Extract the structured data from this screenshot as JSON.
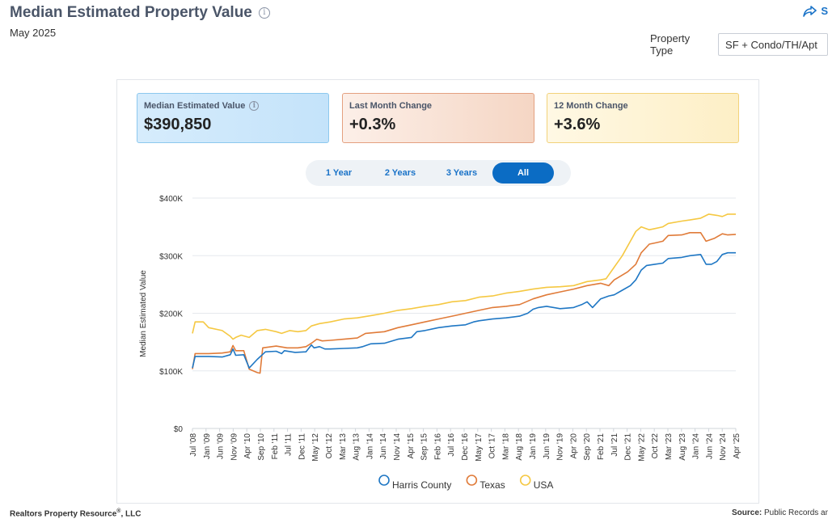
{
  "header": {
    "title": "Median Estimated Property Value",
    "subtitle": "May 2025",
    "share_label": "S"
  },
  "filter": {
    "label": "Property Type",
    "value": "SF + Condo/TH/Apt"
  },
  "cards": [
    {
      "label": "Median Estimated Value",
      "value": "$390,850",
      "has_info": true
    },
    {
      "label": "Last Month Change",
      "value": "+0.3%"
    },
    {
      "label": "12 Month Change",
      "value": "+3.6%"
    }
  ],
  "range_buttons": [
    {
      "label": "1 Year",
      "active": false
    },
    {
      "label": "2 Years",
      "active": false
    },
    {
      "label": "3 Years",
      "active": false
    },
    {
      "label": "All",
      "active": true
    }
  ],
  "footer": {
    "left": "Realtors Property Resource",
    "left_mark": "®",
    "left_suffix": ", LLC",
    "right_label": "Source:",
    "right_text": "Public Records an"
  },
  "chart_data": {
    "type": "line",
    "ylabel": "Median Estimated Value",
    "ylim": [
      0,
      400000
    ],
    "y_ticks": [
      {
        "value": 0,
        "label": "$0"
      },
      {
        "value": 100000,
        "label": "$100K"
      },
      {
        "value": 200000,
        "label": "$200K"
      },
      {
        "value": 300000,
        "label": "$300K"
      },
      {
        "value": 400000,
        "label": "$400K"
      }
    ],
    "x_range": [
      "2008-07",
      "2025-04"
    ],
    "x_tick_labels": [
      "Jul '08",
      "Jan '09",
      "Jun '09",
      "Nov '09",
      "Apr '10",
      "Sep '10",
      "Feb '11",
      "Jul '11",
      "Dec '11",
      "May '12",
      "Oct '12",
      "Mar '13",
      "Aug '13",
      "Jan '14",
      "Jun '14",
      "Nov '14",
      "Apr '15",
      "Sep '15",
      "Feb '16",
      "Jul '16",
      "Dec '16",
      "May '17",
      "Oct '17",
      "Mar '18",
      "Aug '18",
      "Jan '19",
      "Jun '19",
      "Nov '19",
      "Apr '20",
      "Sep '20",
      "Feb '21",
      "Jul '21",
      "Dec '21",
      "May '22",
      "Oct '22",
      "Mar '23",
      "Aug '23",
      "Jan '24",
      "Jun '24",
      "Nov '24",
      "Apr '25"
    ],
    "grid": true,
    "legend_position": "bottom",
    "series": [
      {
        "name": "Harris County",
        "color": "#1f77c4",
        "points": [
          [
            "2008-07",
            105000
          ],
          [
            "2008-08",
            125000
          ],
          [
            "2009-01",
            125000
          ],
          [
            "2009-06",
            124000
          ],
          [
            "2009-09",
            128000
          ],
          [
            "2009-10",
            138000
          ],
          [
            "2009-11",
            127000
          ],
          [
            "2010-02",
            128000
          ],
          [
            "2010-04",
            105000
          ],
          [
            "2010-07",
            120000
          ],
          [
            "2010-10",
            133000
          ],
          [
            "2011-02",
            134000
          ],
          [
            "2011-04",
            130000
          ],
          [
            "2011-05",
            135000
          ],
          [
            "2011-09",
            132000
          ],
          [
            "2012-01",
            133000
          ],
          [
            "2012-03",
            145000
          ],
          [
            "2012-04",
            140000
          ],
          [
            "2012-06",
            142000
          ],
          [
            "2012-08",
            138000
          ],
          [
            "2012-10",
            138000
          ],
          [
            "2013-03",
            139000
          ],
          [
            "2013-08",
            140000
          ],
          [
            "2013-10",
            142000
          ],
          [
            "2014-01",
            147000
          ],
          [
            "2014-06",
            148000
          ],
          [
            "2014-11",
            155000
          ],
          [
            "2015-04",
            158000
          ],
          [
            "2015-06",
            168000
          ],
          [
            "2015-09",
            170000
          ],
          [
            "2016-02",
            175000
          ],
          [
            "2016-07",
            178000
          ],
          [
            "2016-12",
            180000
          ],
          [
            "2017-03",
            185000
          ],
          [
            "2017-05",
            187000
          ],
          [
            "2017-10",
            190000
          ],
          [
            "2018-03",
            192000
          ],
          [
            "2018-08",
            195000
          ],
          [
            "2018-11",
            200000
          ],
          [
            "2019-01",
            207000
          ],
          [
            "2019-03",
            210000
          ],
          [
            "2019-06",
            212000
          ],
          [
            "2019-11",
            208000
          ],
          [
            "2020-04",
            210000
          ],
          [
            "2020-07",
            215000
          ],
          [
            "2020-09",
            220000
          ],
          [
            "2020-11",
            210000
          ],
          [
            "2021-02",
            225000
          ],
          [
            "2021-05",
            230000
          ],
          [
            "2021-07",
            232000
          ],
          [
            "2021-10",
            240000
          ],
          [
            "2022-01",
            248000
          ],
          [
            "2022-03",
            258000
          ],
          [
            "2022-05",
            275000
          ],
          [
            "2022-07",
            283000
          ],
          [
            "2022-10",
            285000
          ],
          [
            "2023-01",
            287000
          ],
          [
            "2023-03",
            295000
          ],
          [
            "2023-08",
            297000
          ],
          [
            "2023-11",
            300000
          ],
          [
            "2024-03",
            302000
          ],
          [
            "2024-05",
            285000
          ],
          [
            "2024-07",
            285000
          ],
          [
            "2024-09",
            290000
          ],
          [
            "2024-11",
            302000
          ],
          [
            "2025-01",
            305000
          ],
          [
            "2025-04",
            305000
          ]
        ]
      },
      {
        "name": "Texas",
        "color": "#e07b39",
        "points": [
          [
            "2008-07",
            103000
          ],
          [
            "2008-08",
            130000
          ],
          [
            "2009-01",
            130000
          ],
          [
            "2009-06",
            131000
          ],
          [
            "2009-09",
            133000
          ],
          [
            "2009-10",
            144000
          ],
          [
            "2009-11",
            135000
          ],
          [
            "2010-02",
            135000
          ],
          [
            "2010-04",
            103000
          ],
          [
            "2010-07",
            97000
          ],
          [
            "2010-08",
            96000
          ],
          [
            "2010-09",
            140000
          ],
          [
            "2011-02",
            143000
          ],
          [
            "2011-06",
            140000
          ],
          [
            "2011-10",
            140000
          ],
          [
            "2012-01",
            142000
          ],
          [
            "2012-03",
            148000
          ],
          [
            "2012-05",
            155000
          ],
          [
            "2012-07",
            152000
          ],
          [
            "2012-10",
            153000
          ],
          [
            "2013-03",
            155000
          ],
          [
            "2013-08",
            157000
          ],
          [
            "2013-11",
            165000
          ],
          [
            "2014-06",
            168000
          ],
          [
            "2014-11",
            175000
          ],
          [
            "2015-04",
            180000
          ],
          [
            "2015-09",
            185000
          ],
          [
            "2016-02",
            190000
          ],
          [
            "2016-07",
            195000
          ],
          [
            "2016-12",
            200000
          ],
          [
            "2017-05",
            205000
          ],
          [
            "2017-10",
            210000
          ],
          [
            "2018-03",
            212000
          ],
          [
            "2018-08",
            215000
          ],
          [
            "2019-01",
            225000
          ],
          [
            "2019-06",
            232000
          ],
          [
            "2019-11",
            237000
          ],
          [
            "2020-04",
            242000
          ],
          [
            "2020-09",
            248000
          ],
          [
            "2021-02",
            252000
          ],
          [
            "2021-05",
            248000
          ],
          [
            "2021-07",
            258000
          ],
          [
            "2021-12",
            272000
          ],
          [
            "2022-03",
            285000
          ],
          [
            "2022-05",
            305000
          ],
          [
            "2022-08",
            320000
          ],
          [
            "2022-10",
            322000
          ],
          [
            "2023-01",
            325000
          ],
          [
            "2023-03",
            335000
          ],
          [
            "2023-08",
            336000
          ],
          [
            "2023-11",
            340000
          ],
          [
            "2024-03",
            340000
          ],
          [
            "2024-05",
            325000
          ],
          [
            "2024-08",
            330000
          ],
          [
            "2024-11",
            338000
          ],
          [
            "2025-01",
            336000
          ],
          [
            "2025-04",
            337000
          ]
        ]
      },
      {
        "name": "USA",
        "color": "#f5c842",
        "points": [
          [
            "2008-07",
            165000
          ],
          [
            "2008-08",
            185000
          ],
          [
            "2008-11",
            185000
          ],
          [
            "2009-01",
            175000
          ],
          [
            "2009-06",
            170000
          ],
          [
            "2009-09",
            160000
          ],
          [
            "2009-10",
            155000
          ],
          [
            "2009-11",
            158000
          ],
          [
            "2010-01",
            162000
          ],
          [
            "2010-04",
            158000
          ],
          [
            "2010-07",
            170000
          ],
          [
            "2010-10",
            172000
          ],
          [
            "2011-02",
            168000
          ],
          [
            "2011-04",
            165000
          ],
          [
            "2011-07",
            170000
          ],
          [
            "2011-10",
            168000
          ],
          [
            "2012-01",
            170000
          ],
          [
            "2012-03",
            178000
          ],
          [
            "2012-06",
            182000
          ],
          [
            "2012-10",
            185000
          ],
          [
            "2013-03",
            190000
          ],
          [
            "2013-08",
            192000
          ],
          [
            "2014-01",
            196000
          ],
          [
            "2014-06",
            200000
          ],
          [
            "2014-11",
            205000
          ],
          [
            "2015-04",
            208000
          ],
          [
            "2015-09",
            212000
          ],
          [
            "2016-02",
            215000
          ],
          [
            "2016-07",
            220000
          ],
          [
            "2016-12",
            222000
          ],
          [
            "2017-05",
            228000
          ],
          [
            "2017-10",
            230000
          ],
          [
            "2018-03",
            235000
          ],
          [
            "2018-08",
            238000
          ],
          [
            "2019-01",
            242000
          ],
          [
            "2019-06",
            245000
          ],
          [
            "2019-11",
            246000
          ],
          [
            "2020-04",
            248000
          ],
          [
            "2020-09",
            255000
          ],
          [
            "2021-02",
            258000
          ],
          [
            "2021-04",
            260000
          ],
          [
            "2021-07",
            280000
          ],
          [
            "2021-10",
            300000
          ],
          [
            "2022-01",
            325000
          ],
          [
            "2022-03",
            342000
          ],
          [
            "2022-05",
            350000
          ],
          [
            "2022-08",
            345000
          ],
          [
            "2022-10",
            347000
          ],
          [
            "2023-01",
            350000
          ],
          [
            "2023-03",
            356000
          ],
          [
            "2023-08",
            360000
          ],
          [
            "2023-11",
            362000
          ],
          [
            "2024-03",
            365000
          ],
          [
            "2024-06",
            372000
          ],
          [
            "2024-09",
            370000
          ],
          [
            "2024-11",
            368000
          ],
          [
            "2025-01",
            372000
          ],
          [
            "2025-04",
            372000
          ]
        ]
      }
    ]
  }
}
